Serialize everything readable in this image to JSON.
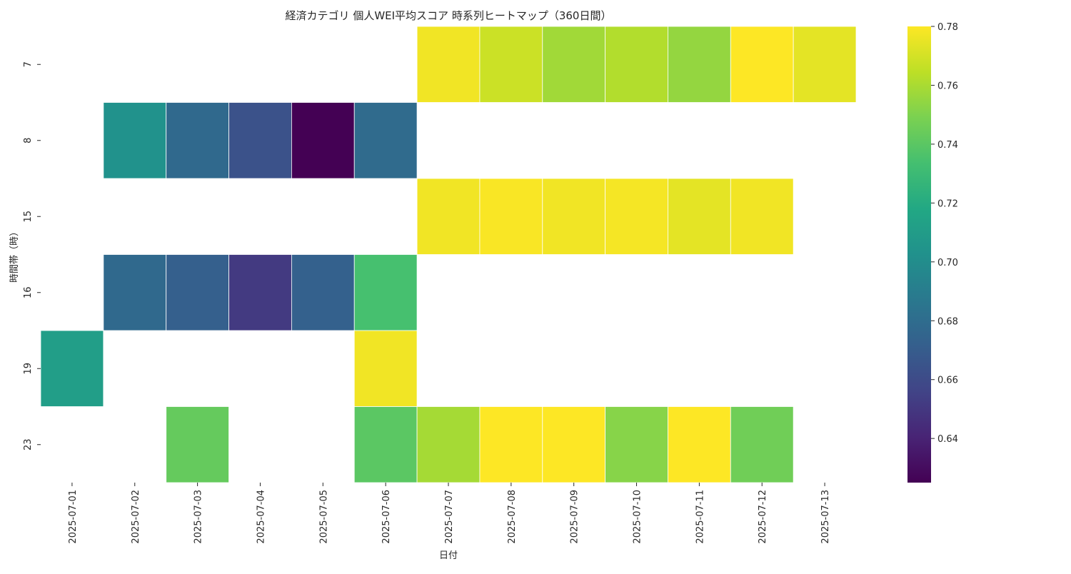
{
  "chart_data": {
    "type": "heatmap",
    "title": "経済カテゴリ 個人WEI平均スコア 時系列ヒートマップ（360日間）",
    "xlabel": "日付",
    "ylabel": "時間帯（時）",
    "x": [
      "2025-07-01",
      "2025-07-02",
      "2025-07-03",
      "2025-07-04",
      "2025-07-05",
      "2025-07-06",
      "2025-07-07",
      "2025-07-08",
      "2025-07-09",
      "2025-07-10",
      "2025-07-11",
      "2025-07-12",
      "2025-07-13"
    ],
    "y": [
      "7",
      "8",
      "15",
      "16",
      "19",
      "23"
    ],
    "values": [
      [
        null,
        null,
        null,
        null,
        null,
        null,
        0.777,
        0.768,
        0.758,
        0.762,
        0.755,
        0.78,
        0.774
      ],
      [
        null,
        0.703,
        0.678,
        0.664,
        0.625,
        0.679,
        null,
        null,
        null,
        null,
        null,
        null,
        null
      ],
      [
        null,
        null,
        null,
        null,
        null,
        null,
        0.777,
        0.779,
        0.777,
        0.778,
        0.774,
        0.777,
        null
      ],
      [
        null,
        0.678,
        0.672,
        0.651,
        0.673,
        0.734,
        null,
        null,
        null,
        null,
        null,
        null,
        null
      ],
      [
        0.711,
        null,
        null,
        null,
        null,
        0.777,
        null,
        null,
        null,
        null,
        null,
        null,
        null
      ],
      [
        null,
        null,
        0.743,
        null,
        null,
        0.74,
        0.759,
        0.78,
        0.78,
        0.752,
        0.78,
        0.746,
        null
      ]
    ],
    "colorscale": "viridis",
    "vmin": 0.625,
    "vmax": 0.78,
    "colorbar_ticks": [
      "0.64",
      "0.66",
      "0.68",
      "0.70",
      "0.72",
      "0.74",
      "0.76",
      "0.78"
    ],
    "grid": false,
    "cell_border_color": "#ffffff"
  }
}
